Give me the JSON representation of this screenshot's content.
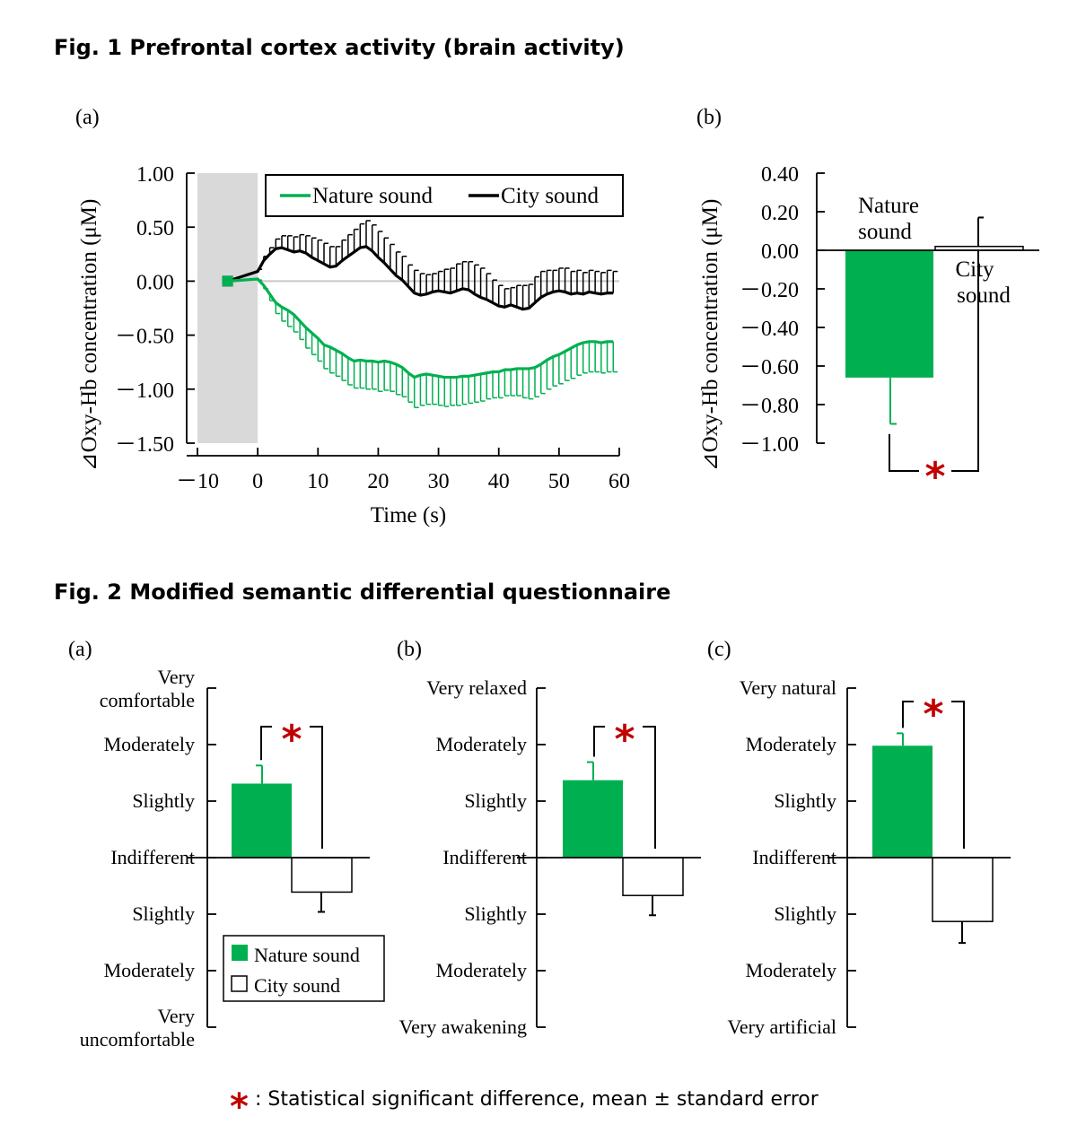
{
  "fig1": {
    "title": "Fig. 1 Prefrontal cortex activity (brain activity)",
    "panel_a": "(a)",
    "panel_b": "(b)"
  },
  "fig2": {
    "title": "Fig. 2 Modified semantic differential questionnaire",
    "panel_a": "(a)",
    "panel_b": "(b)",
    "panel_c": "(c)"
  },
  "footnote": {
    "star": "*",
    "text": ": Statistical significant difference, mean ± standard error"
  },
  "colors": {
    "nature": "#00b050",
    "city": "#000000",
    "significance": "#c00000",
    "shade": "#d9d9d9"
  },
  "chart_data": [
    {
      "id": "fig1a",
      "type": "line",
      "xlabel": "Time (s)",
      "ylabel": "⊿Oxy-Hb concentration (μM)",
      "xlim": [
        -10,
        60
      ],
      "ylim": [
        -1.5,
        1.0
      ],
      "xticks": [
        -10,
        0,
        10,
        20,
        30,
        40,
        50,
        60
      ],
      "xtick_labels": [
        "－10",
        "0",
        "10",
        "20",
        "30",
        "40",
        "50",
        "60"
      ],
      "yticks": [
        1.0,
        0.5,
        0.0,
        -0.5,
        -1.0,
        -1.5
      ],
      "ytick_labels": [
        "1.00",
        "0.50",
        "0.00",
        "－0.50",
        "－1.00",
        "－1.50"
      ],
      "shaded_interval": [
        -10,
        0
      ],
      "baseline_point": -5,
      "legend": [
        "Nature sound",
        "City sound"
      ],
      "x": [
        0,
        1,
        2,
        3,
        4,
        5,
        6,
        7,
        8,
        9,
        10,
        11,
        12,
        13,
        14,
        15,
        16,
        17,
        18,
        19,
        20,
        21,
        22,
        23,
        24,
        25,
        26,
        27,
        28,
        29,
        30,
        31,
        32,
        33,
        34,
        35,
        36,
        37,
        38,
        39,
        40,
        41,
        42,
        43,
        44,
        45,
        46,
        47,
        48,
        49,
        50,
        51,
        52,
        53,
        54,
        55,
        56,
        57,
        58,
        59
      ],
      "series": [
        {
          "name": "City sound",
          "values": [
            0.09,
            0.19,
            0.25,
            0.3,
            0.31,
            0.29,
            0.27,
            0.28,
            0.26,
            0.22,
            0.19,
            0.16,
            0.13,
            0.14,
            0.19,
            0.23,
            0.27,
            0.31,
            0.32,
            0.28,
            0.22,
            0.17,
            0.11,
            0.05,
            0.01,
            -0.05,
            -0.11,
            -0.13,
            -0.12,
            -0.1,
            -0.09,
            -0.1,
            -0.11,
            -0.09,
            -0.07,
            -0.08,
            -0.12,
            -0.15,
            -0.17,
            -0.2,
            -0.23,
            -0.24,
            -0.22,
            -0.24,
            -0.26,
            -0.25,
            -0.2,
            -0.15,
            -0.12,
            -0.1,
            -0.09,
            -0.1,
            -0.12,
            -0.11,
            -0.12,
            -0.1,
            -0.11,
            -0.12,
            -0.11,
            -0.11
          ],
          "errors": [
            0.02,
            0.04,
            0.06,
            0.09,
            0.11,
            0.13,
            0.14,
            0.15,
            0.16,
            0.18,
            0.19,
            0.19,
            0.19,
            0.18,
            0.19,
            0.2,
            0.21,
            0.22,
            0.24,
            0.24,
            0.24,
            0.23,
            0.23,
            0.22,
            0.22,
            0.2,
            0.21,
            0.2,
            0.18,
            0.17,
            0.18,
            0.21,
            0.23,
            0.25,
            0.25,
            0.26,
            0.27,
            0.27,
            0.24,
            0.21,
            0.19,
            0.17,
            0.16,
            0.2,
            0.22,
            0.22,
            0.24,
            0.24,
            0.22,
            0.2,
            0.21,
            0.22,
            0.21,
            0.21,
            0.2,
            0.2,
            0.2,
            0.2,
            0.21,
            0.2
          ]
        },
        {
          "name": "Nature sound",
          "values": [
            0.02,
            -0.04,
            -0.12,
            -0.2,
            -0.24,
            -0.27,
            -0.31,
            -0.37,
            -0.43,
            -0.48,
            -0.53,
            -0.59,
            -0.61,
            -0.64,
            -0.67,
            -0.71,
            -0.74,
            -0.73,
            -0.74,
            -0.74,
            -0.75,
            -0.74,
            -0.75,
            -0.77,
            -0.8,
            -0.85,
            -0.89,
            -0.87,
            -0.86,
            -0.87,
            -0.88,
            -0.89,
            -0.89,
            -0.89,
            -0.88,
            -0.88,
            -0.87,
            -0.86,
            -0.85,
            -0.84,
            -0.84,
            -0.82,
            -0.82,
            -0.81,
            -0.81,
            -0.81,
            -0.8,
            -0.77,
            -0.73,
            -0.7,
            -0.68,
            -0.65,
            -0.62,
            -0.59,
            -0.57,
            -0.56,
            -0.56,
            -0.57,
            -0.56,
            -0.56
          ],
          "errors": [
            0.01,
            0.03,
            0.06,
            0.1,
            0.13,
            0.15,
            0.16,
            0.17,
            0.19,
            0.2,
            0.21,
            0.22,
            0.24,
            0.24,
            0.25,
            0.25,
            0.25,
            0.26,
            0.26,
            0.26,
            0.27,
            0.27,
            0.27,
            0.28,
            0.27,
            0.27,
            0.28,
            0.28,
            0.28,
            0.27,
            0.27,
            0.27,
            0.26,
            0.26,
            0.26,
            0.25,
            0.25,
            0.25,
            0.24,
            0.24,
            0.24,
            0.24,
            0.24,
            0.25,
            0.27,
            0.28,
            0.27,
            0.27,
            0.27,
            0.27,
            0.27,
            0.27,
            0.28,
            0.28,
            0.28,
            0.28,
            0.28,
            0.28,
            0.28,
            0.28
          ]
        }
      ]
    },
    {
      "id": "fig1b",
      "type": "bar",
      "ylabel": "⊿Oxy-Hb concentration (μM)",
      "ylim": [
        -1.0,
        0.4
      ],
      "yticks": [
        0.4,
        0.2,
        0.0,
        -0.2,
        -0.4,
        -0.6,
        -0.8,
        -1.0
      ],
      "ytick_labels": [
        "0.40",
        "0.20",
        "0.00",
        "－0.20",
        "－0.40",
        "－0.60",
        "－0.80",
        "－1.00"
      ],
      "categories": [
        "Nature sound",
        "City sound"
      ],
      "category_labels": [
        [
          "Nature",
          "sound"
        ],
        [
          "City",
          "sound"
        ]
      ],
      "values": [
        -0.66,
        0.02
      ],
      "errors": [
        0.24,
        0.15
      ],
      "significance": true
    },
    {
      "id": "fig2a",
      "type": "bar",
      "scale_labels": [
        [
          "Very",
          "comfortable"
        ],
        [
          "Moderately"
        ],
        [
          "Slightly"
        ],
        [
          "Indifferent"
        ],
        [
          "Slightly"
        ],
        [
          "Moderately"
        ],
        [
          "Very",
          "uncomfortable"
        ]
      ],
      "ylim": [
        -3,
        3
      ],
      "categories": [
        "Nature sound",
        "City sound"
      ],
      "values": [
        1.31,
        -0.61
      ],
      "errors": [
        0.32,
        0.35
      ],
      "legend": [
        "Nature sound",
        "City sound"
      ],
      "significance": true
    },
    {
      "id": "fig2b",
      "type": "bar",
      "scale_labels": [
        [
          "Very relaxed"
        ],
        [
          "Moderately"
        ],
        [
          "Slightly"
        ],
        [
          "Indifferent"
        ],
        [
          "Slightly"
        ],
        [
          "Moderately"
        ],
        [
          "Very awakening"
        ]
      ],
      "ylim": [
        -3,
        3
      ],
      "categories": [
        "Nature sound",
        "City sound"
      ],
      "values": [
        1.37,
        -0.67
      ],
      "errors": [
        0.32,
        0.35
      ],
      "significance": true
    },
    {
      "id": "fig2c",
      "type": "bar",
      "scale_labels": [
        [
          "Very natural"
        ],
        [
          "Moderately"
        ],
        [
          "Slightly"
        ],
        [
          "Indifferent"
        ],
        [
          "Slightly"
        ],
        [
          "Moderately"
        ],
        [
          "Very artificial"
        ]
      ],
      "ylim": [
        -3,
        3
      ],
      "categories": [
        "Nature sound",
        "City sound"
      ],
      "values": [
        1.98,
        -1.13
      ],
      "errors": [
        0.22,
        0.38
      ],
      "significance": true
    }
  ]
}
